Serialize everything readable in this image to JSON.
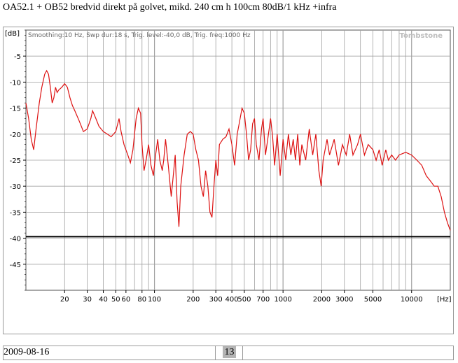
{
  "page_title": "OA52.1 + OB52 bredvid direkt på golvet, mikd. 240 cm h 100cm 80dB/1 kHz +infra",
  "footer": {
    "date": "2009-08-16",
    "page_number": "13"
  },
  "chart_data": {
    "type": "line",
    "title": "",
    "info": "Smoothing:10 Hz, Swp dur:18 s, Trig. level:-40,0 dB, Trig. freq:1000 Hz",
    "watermark": "Tombstone",
    "ylabel": "[dB]",
    "xlabel": "[Hz]",
    "x_scale": "log",
    "xlim": [
      10,
      20000
    ],
    "ylim": [
      -50,
      0
    ],
    "y_ticks": [
      {
        "value": -5,
        "label": "-5"
      },
      {
        "value": -10,
        "label": "-10"
      },
      {
        "value": -15,
        "label": "-15"
      },
      {
        "value": -20,
        "label": "-20"
      },
      {
        "value": -25,
        "label": "-25"
      },
      {
        "value": -30,
        "label": "-30"
      },
      {
        "value": -35,
        "label": "-35"
      },
      {
        "value": -40,
        "label": "-40"
      },
      {
        "value": -45,
        "label": "-45"
      }
    ],
    "x_ticks": [
      {
        "value": 20,
        "label": "20"
      },
      {
        "value": 30,
        "label": "30"
      },
      {
        "value": 40,
        "label": "40"
      },
      {
        "value": 50,
        "label": "50"
      },
      {
        "value": 60,
        "label": "60"
      },
      {
        "value": 80,
        "label": "80"
      },
      {
        "value": 100,
        "label": "100"
      },
      {
        "value": 200,
        "label": "200"
      },
      {
        "value": 300,
        "label": "300"
      },
      {
        "value": 400,
        "label": "400"
      },
      {
        "value": 500,
        "label": "500"
      },
      {
        "value": 700,
        "label": "700"
      },
      {
        "value": 1000,
        "label": "1000"
      },
      {
        "value": 2000,
        "label": "2000"
      },
      {
        "value": 3000,
        "label": "3000"
      },
      {
        "value": 5000,
        "label": "5000"
      },
      {
        "value": 10000,
        "label": "10000"
      }
    ],
    "reference_line": -39.7,
    "grid": true,
    "colors": {
      "series": "#dd1111",
      "reference": "#000000",
      "grid": "#a0a0a0"
    },
    "series": [
      {
        "points": [
          [
            10,
            -14
          ],
          [
            10.5,
            -17
          ],
          [
            11,
            -21
          ],
          [
            11.5,
            -23
          ],
          [
            12,
            -19
          ],
          [
            12.7,
            -14
          ],
          [
            13.3,
            -11
          ],
          [
            14,
            -8.5
          ],
          [
            14.5,
            -7.8
          ],
          [
            15,
            -8.5
          ],
          [
            15.5,
            -11
          ],
          [
            16,
            -14
          ],
          [
            16.5,
            -13
          ],
          [
            17,
            -11
          ],
          [
            17.5,
            -12
          ],
          [
            18,
            -11.5
          ],
          [
            19,
            -11
          ],
          [
            20,
            -10.3
          ],
          [
            21,
            -11
          ],
          [
            22,
            -13
          ],
          [
            23,
            -14.5
          ],
          [
            24,
            -15.5
          ],
          [
            26,
            -17.5
          ],
          [
            28,
            -19.5
          ],
          [
            30,
            -19
          ],
          [
            32,
            -17
          ],
          [
            33,
            -15.5
          ],
          [
            35,
            -17
          ],
          [
            37,
            -18.5
          ],
          [
            40,
            -19.5
          ],
          [
            43,
            -20
          ],
          [
            46,
            -20.5
          ],
          [
            50,
            -19.5
          ],
          [
            53,
            -17
          ],
          [
            55,
            -19.5
          ],
          [
            58,
            -22
          ],
          [
            62,
            -24
          ],
          [
            65,
            -25.5
          ],
          [
            68,
            -23
          ],
          [
            72,
            -17
          ],
          [
            75,
            -15
          ],
          [
            78,
            -16
          ],
          [
            80,
            -22
          ],
          [
            83,
            -27
          ],
          [
            86,
            -25
          ],
          [
            90,
            -22
          ],
          [
            94,
            -26
          ],
          [
            98,
            -28
          ],
          [
            102,
            -24
          ],
          [
            106,
            -21
          ],
          [
            110,
            -25
          ],
          [
            115,
            -27
          ],
          [
            118,
            -25
          ],
          [
            122,
            -21
          ],
          [
            128,
            -26
          ],
          [
            135,
            -32
          ],
          [
            140,
            -28
          ],
          [
            145,
            -24
          ],
          [
            150,
            -33
          ],
          [
            155,
            -37.8
          ],
          [
            160,
            -30
          ],
          [
            170,
            -24
          ],
          [
            180,
            -20
          ],
          [
            190,
            -19.5
          ],
          [
            200,
            -20
          ],
          [
            210,
            -23
          ],
          [
            220,
            -25
          ],
          [
            230,
            -30
          ],
          [
            240,
            -32
          ],
          [
            250,
            -27
          ],
          [
            260,
            -30
          ],
          [
            270,
            -35
          ],
          [
            280,
            -36
          ],
          [
            290,
            -30
          ],
          [
            300,
            -25
          ],
          [
            310,
            -28
          ],
          [
            320,
            -22
          ],
          [
            340,
            -21
          ],
          [
            360,
            -20.5
          ],
          [
            380,
            -19
          ],
          [
            400,
            -22
          ],
          [
            420,
            -26
          ],
          [
            440,
            -20
          ],
          [
            460,
            -17.5
          ],
          [
            480,
            -15
          ],
          [
            500,
            -16
          ],
          [
            520,
            -20
          ],
          [
            540,
            -25
          ],
          [
            560,
            -23
          ],
          [
            580,
            -18
          ],
          [
            600,
            -17
          ],
          [
            620,
            -22
          ],
          [
            650,
            -25
          ],
          [
            680,
            -19
          ],
          [
            700,
            -17
          ],
          [
            730,
            -24
          ],
          [
            760,
            -21
          ],
          [
            800,
            -17
          ],
          [
            830,
            -20.5
          ],
          [
            860,
            -26
          ],
          [
            900,
            -20
          ],
          [
            950,
            -28
          ],
          [
            1000,
            -21
          ],
          [
            1050,
            -25
          ],
          [
            1100,
            -20
          ],
          [
            1150,
            -24
          ],
          [
            1200,
            -21
          ],
          [
            1250,
            -25
          ],
          [
            1300,
            -20
          ],
          [
            1350,
            -26
          ],
          [
            1400,
            -22
          ],
          [
            1500,
            -25
          ],
          [
            1600,
            -19
          ],
          [
            1700,
            -24
          ],
          [
            1800,
            -20
          ],
          [
            1900,
            -27
          ],
          [
            1980,
            -30
          ],
          [
            2050,
            -25
          ],
          [
            2200,
            -21
          ],
          [
            2300,
            -24
          ],
          [
            2500,
            -21
          ],
          [
            2700,
            -26
          ],
          [
            2900,
            -22
          ],
          [
            3100,
            -24
          ],
          [
            3300,
            -20
          ],
          [
            3500,
            -24
          ],
          [
            3800,
            -22
          ],
          [
            4000,
            -20
          ],
          [
            4300,
            -24
          ],
          [
            4600,
            -22
          ],
          [
            5000,
            -23
          ],
          [
            5300,
            -25
          ],
          [
            5600,
            -23
          ],
          [
            5900,
            -26
          ],
          [
            6300,
            -23
          ],
          [
            6600,
            -25
          ],
          [
            7000,
            -24
          ],
          [
            7500,
            -25
          ],
          [
            8000,
            -24
          ],
          [
            9000,
            -23.5
          ],
          [
            10000,
            -24
          ],
          [
            11000,
            -25
          ],
          [
            12000,
            -26
          ],
          [
            13000,
            -28
          ],
          [
            14000,
            -29
          ],
          [
            15000,
            -30
          ],
          [
            16000,
            -30
          ],
          [
            17000,
            -32
          ],
          [
            18000,
            -35
          ],
          [
            19000,
            -37
          ],
          [
            20000,
            -38.5
          ]
        ]
      }
    ]
  }
}
